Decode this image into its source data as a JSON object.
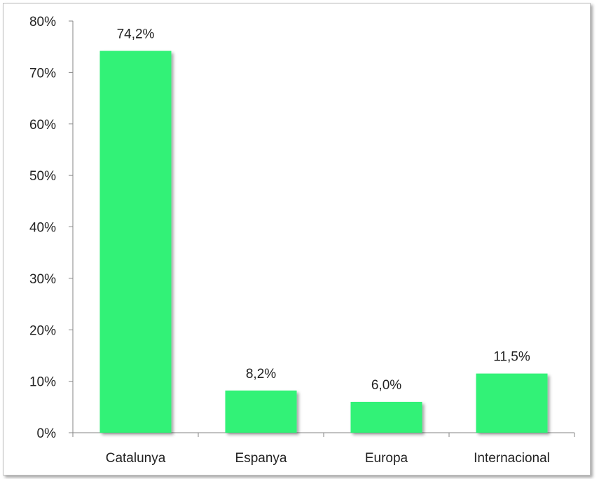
{
  "chart_data": {
    "type": "bar",
    "categories": [
      "Catalunya",
      "Espanya",
      "Europa",
      "Internacional"
    ],
    "values": [
      74.2,
      8.2,
      6.0,
      11.5
    ],
    "data_labels": [
      "74,2%",
      "8,2%",
      "6,0%",
      "11,5%"
    ],
    "ylim": [
      0,
      80
    ],
    "y_ticks": [
      0,
      10,
      20,
      30,
      40,
      50,
      60,
      70,
      80
    ],
    "y_tick_labels": [
      "0%",
      "10%",
      "20%",
      "30%",
      "40%",
      "50%",
      "60%",
      "70%",
      "80%"
    ],
    "title": "",
    "xlabel": "",
    "ylabel": "",
    "grid": false,
    "legend": "none",
    "bar_color": "#33f277",
    "axis_color": "#868686"
  }
}
